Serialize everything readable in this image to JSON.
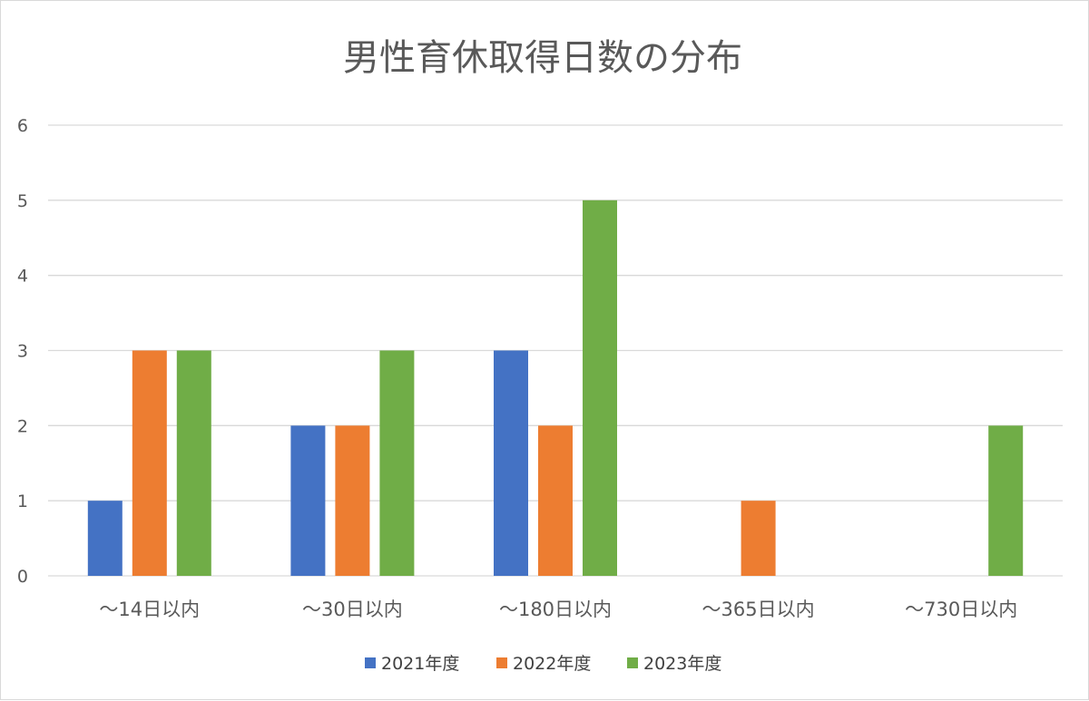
{
  "chart_data": {
    "type": "bar",
    "title": "男性育休取得日数の分布",
    "xlabel": "",
    "ylabel": "",
    "ylim": [
      0,
      6
    ],
    "yticks": [
      0,
      1,
      2,
      3,
      4,
      5,
      6
    ],
    "grid": true,
    "legend_position": "bottom",
    "categories": [
      "～14日以内",
      "～30日以内",
      "～180日以内",
      "～365日以内",
      "～730日以内"
    ],
    "series": [
      {
        "name": "2021年度",
        "color": "#4472c4",
        "values": [
          1,
          2,
          3,
          0,
          0
        ]
      },
      {
        "name": "2022年度",
        "color": "#ed7d31",
        "values": [
          3,
          2,
          2,
          1,
          0
        ]
      },
      {
        "name": "2023年度",
        "color": "#70ad47",
        "values": [
          3,
          3,
          5,
          0,
          2
        ]
      }
    ]
  }
}
